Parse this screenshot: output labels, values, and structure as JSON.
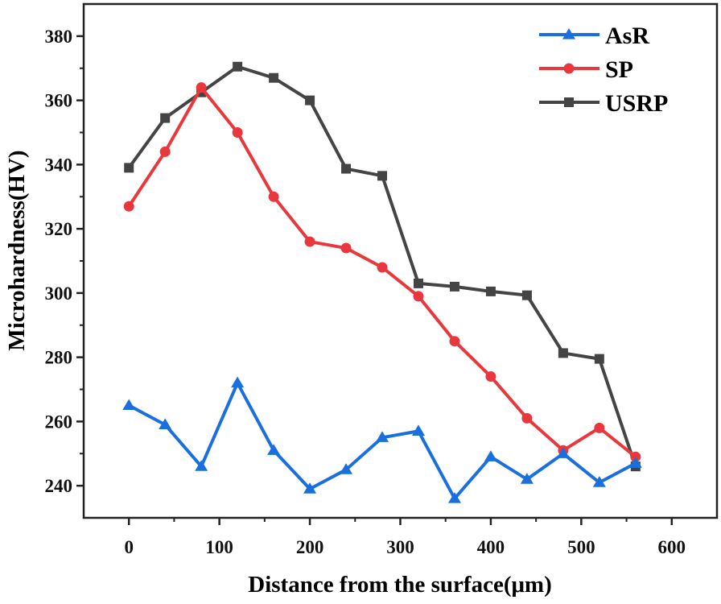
{
  "chart_data": {
    "type": "line",
    "title": "",
    "xlabel": "Distance from the surface(μm)",
    "ylabel": "Microhardness(HV)",
    "xlim": [
      -50,
      650
    ],
    "ylim": [
      230,
      390
    ],
    "xticks": [
      0,
      100,
      200,
      300,
      400,
      500,
      600
    ],
    "xtick_labels": [
      "0",
      "100",
      "200",
      "300",
      "400",
      "500",
      "600"
    ],
    "xminor_step": 50,
    "yticks": [
      240,
      260,
      280,
      300,
      320,
      340,
      360,
      380
    ],
    "ytick_labels": [
      "240",
      "260",
      "280",
      "300",
      "320",
      "340",
      "360",
      "380"
    ],
    "yminor_step": 10,
    "grid": false,
    "legend_position": "top-right",
    "x": [
      0,
      40,
      80,
      120,
      160,
      200,
      240,
      280,
      320,
      360,
      400,
      440,
      480,
      520,
      560
    ],
    "series": [
      {
        "name": "AsR",
        "color": "#1a6fdf",
        "marker": "triangle",
        "values": [
          265,
          259,
          246,
          272,
          251,
          239,
          245,
          255,
          257,
          236,
          249,
          242,
          250,
          241,
          247
        ]
      },
      {
        "name": "SP",
        "color": "#e8383d",
        "marker": "circle",
        "values": [
          327,
          344,
          364,
          350,
          330,
          316,
          314,
          308,
          299,
          285,
          274,
          261,
          251,
          258,
          249
        ]
      },
      {
        "name": "USRP",
        "color": "#444444",
        "marker": "square",
        "values": [
          339,
          354.5,
          362.5,
          370.5,
          367,
          360,
          338.7,
          336.5,
          303,
          302,
          300.5,
          299.3,
          281.3,
          279.5,
          246
        ]
      }
    ]
  }
}
